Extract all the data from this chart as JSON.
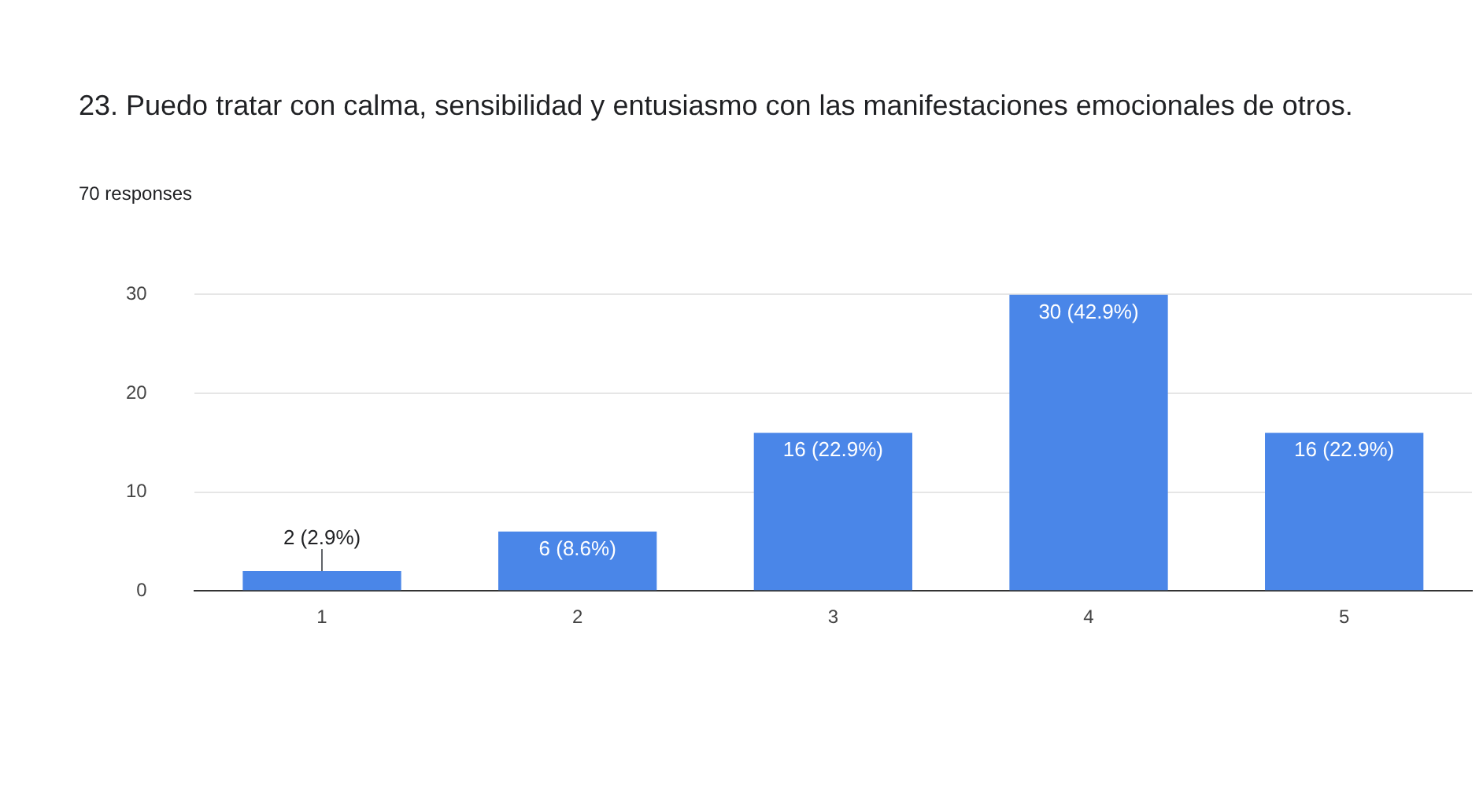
{
  "chart_data": {
    "type": "bar",
    "title": "23. Puedo tratar con calma, sensibilidad y entusiasmo con las manifestaciones emocionales de otros.",
    "subtitle": "70 responses",
    "categories": [
      "1",
      "2",
      "3",
      "4",
      "5"
    ],
    "values": [
      2,
      6,
      16,
      30,
      16
    ],
    "value_labels": [
      "2 (2.9%)",
      "6 (8.6%)",
      "16 (22.9%)",
      "30 (42.9%)",
      "16 (22.9%)"
    ],
    "color": "#4a86e8",
    "ylim": [
      0,
      30
    ],
    "yticks": [
      0,
      10,
      20,
      30
    ],
    "grid": "y",
    "legend": false
  }
}
